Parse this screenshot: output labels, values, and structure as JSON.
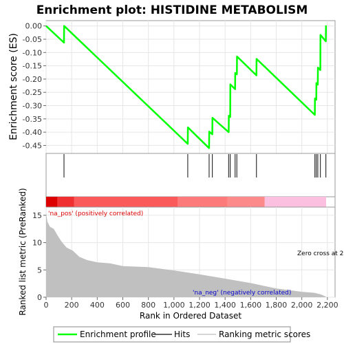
{
  "chart_data": {
    "type": "line",
    "title": "Enrichment plot: HISTIDINE METABOLISM",
    "top_panel": {
      "ylabel": "Enrichment score (ES)",
      "ylim": [
        -0.48,
        0.02
      ],
      "yticks": [
        "0.00",
        "-0.05",
        "-0.10",
        "-0.15",
        "-0.20",
        "-0.25",
        "-0.30",
        "-0.35",
        "-0.40",
        "-0.45"
      ],
      "ytick_values": [
        0,
        -0.05,
        -0.1,
        -0.15,
        -0.2,
        -0.25,
        -0.3,
        -0.35,
        -0.4,
        -0.45
      ],
      "series": [
        {
          "name": "Enrichment profile",
          "color": "#00ff00",
          "x": [
            0,
            140,
            141,
            1108,
            1109,
            1275,
            1276,
            1300,
            1301,
            1428,
            1429,
            1440,
            1441,
            1478,
            1479,
            1492,
            1493,
            1645,
            1646,
            2102,
            2103,
            2113,
            2114,
            2125,
            2126,
            2145,
            2146,
            2188,
            2189
          ],
          "y": [
            0,
            -0.063,
            0,
            -0.444,
            -0.382,
            -0.46,
            -0.398,
            -0.408,
            -0.346,
            -0.4,
            -0.338,
            -0.343,
            -0.22,
            -0.238,
            -0.177,
            -0.182,
            -0.115,
            -0.186,
            -0.124,
            -0.335,
            -0.273,
            -0.278,
            -0.215,
            -0.221,
            -0.157,
            -0.166,
            -0.034,
            -0.058,
            0.002
          ]
        }
      ]
    },
    "hits": [
      140,
      1108,
      1275,
      1300,
      1428,
      1440,
      1478,
      1492,
      1645,
      2102,
      2113,
      2125,
      2145,
      2188
    ],
    "color_bar": {
      "segments": [
        {
          "from": 0,
          "to": 90,
          "color": "#dd0000"
        },
        {
          "from": 90,
          "to": 220,
          "color": "#f03030"
        },
        {
          "from": 220,
          "to": 1030,
          "color": "#fb5a5a"
        },
        {
          "from": 1030,
          "to": 1420,
          "color": "#fd7a7a"
        },
        {
          "from": 1420,
          "to": 1710,
          "color": "#fc8a8a"
        },
        {
          "from": 1710,
          "to": 2190,
          "color": "#fbc0e0"
        }
      ]
    },
    "bottom_panel": {
      "ylabel": "Ranked list metric (PreRanked)",
      "xlabel": "Rank in Ordered Dataset",
      "ylim": [
        0,
        16.5
      ],
      "yticks": [
        "0",
        "5",
        "10",
        "15"
      ],
      "ytick_values": [
        0,
        5,
        10,
        15
      ],
      "xlim": [
        0,
        2260
      ],
      "xticks": [
        "0",
        "200",
        "400",
        "600",
        "800",
        "1,000",
        "1,200",
        "1,400",
        "1,600",
        "1,800",
        "2,000",
        "2,200"
      ],
      "xtick_values": [
        0,
        200,
        400,
        600,
        800,
        1000,
        1200,
        1400,
        1600,
        1800,
        2000,
        2200
      ],
      "metric_x": [
        0,
        10,
        30,
        60,
        90,
        120,
        160,
        210,
        260,
        320,
        400,
        500,
        600,
        800,
        1000,
        1200,
        1400,
        1600,
        1800,
        2000,
        2100,
        2150,
        2189
      ],
      "metric_y": [
        15.5,
        13.8,
        12.9,
        12.5,
        11.3,
        10.2,
        9.1,
        8.5,
        7.4,
        6.8,
        6.4,
        6.2,
        5.7,
        5.5,
        4.9,
        4.2,
        3.4,
        2.6,
        1.6,
        1.0,
        0.8,
        0.5,
        0.1
      ],
      "fill_color": "#c0c0c0",
      "annotations": {
        "pos": "'na_pos' (positively correlated)",
        "neg": "'na_neg' (negatively correlated)",
        "zero": "Zero cross at 2",
        "pos_color": "#dd0000",
        "neg_color": "#0000cc"
      }
    },
    "legend": {
      "placement": "bottom",
      "entries": [
        {
          "label": "Enrichment profile",
          "color": "#00ff00"
        },
        {
          "label": "Hits",
          "color": "#333333"
        },
        {
          "label": "Ranking metric scores",
          "color": "#c8c8c8"
        }
      ]
    },
    "grid": true
  }
}
